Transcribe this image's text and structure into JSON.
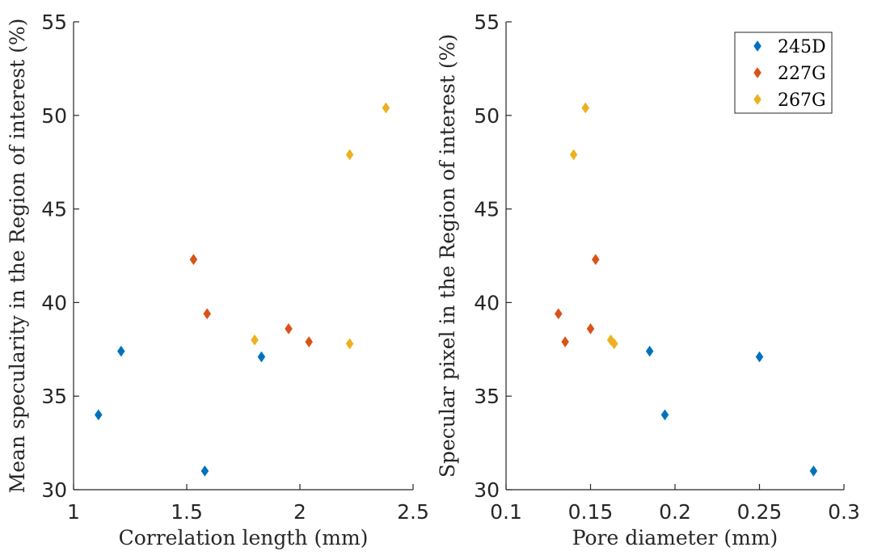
{
  "chart_data": [
    {
      "type": "scatter",
      "xlabel": "Correlation length (mm)",
      "ylabel": "Mean specularity in the Region of interest (%)",
      "xlim": [
        1,
        2.5
      ],
      "ylim": [
        30,
        55
      ],
      "xticks": [
        "1",
        "1.5",
        "2",
        "2.5"
      ],
      "yticks": [
        "30",
        "35",
        "40",
        "45",
        "50",
        "55"
      ],
      "grid": false,
      "series": [
        {
          "name": "245D",
          "color": "#0072BD",
          "points": [
            [
              1.11,
              34.0
            ],
            [
              1.21,
              37.4
            ],
            [
              1.58,
              31.0
            ],
            [
              1.83,
              37.1
            ]
          ]
        },
        {
          "name": "227G",
          "color": "#D95319",
          "points": [
            [
              1.53,
              42.3
            ],
            [
              1.59,
              39.4
            ],
            [
              1.95,
              38.6
            ],
            [
              2.04,
              37.9
            ]
          ]
        },
        {
          "name": "267G",
          "color": "#EDB120",
          "points": [
            [
              1.8,
              38.0
            ],
            [
              2.22,
              47.9
            ],
            [
              2.22,
              37.8
            ],
            [
              2.38,
              50.4
            ]
          ]
        }
      ]
    },
    {
      "type": "scatter",
      "xlabel": "Pore diameter (mm)",
      "ylabel": "Specular pixel in the Region of interest (%)",
      "xlim": [
        0.1,
        0.3
      ],
      "ylim": [
        30,
        55
      ],
      "xticks": [
        "0.1",
        "0.15",
        "0.2",
        "0.25",
        "0.3"
      ],
      "yticks": [
        "30",
        "35",
        "40",
        "45",
        "50",
        "55"
      ],
      "grid": false,
      "legend": {
        "position": "top-right",
        "entries": [
          "245D",
          "227G",
          "267G"
        ]
      },
      "series": [
        {
          "name": "245D",
          "color": "#0072BD",
          "points": [
            [
              0.185,
              37.4
            ],
            [
              0.194,
              34.0
            ],
            [
              0.25,
              37.1
            ],
            [
              0.282,
              31.0
            ]
          ]
        },
        {
          "name": "227G",
          "color": "#D95319",
          "points": [
            [
              0.131,
              39.4
            ],
            [
              0.135,
              37.9
            ],
            [
              0.15,
              38.6
            ],
            [
              0.153,
              42.3
            ]
          ]
        },
        {
          "name": "267G",
          "color": "#EDB120",
          "points": [
            [
              0.14,
              47.9
            ],
            [
              0.147,
              50.4
            ],
            [
              0.162,
              38.0
            ],
            [
              0.164,
              37.8
            ]
          ]
        }
      ]
    }
  ]
}
